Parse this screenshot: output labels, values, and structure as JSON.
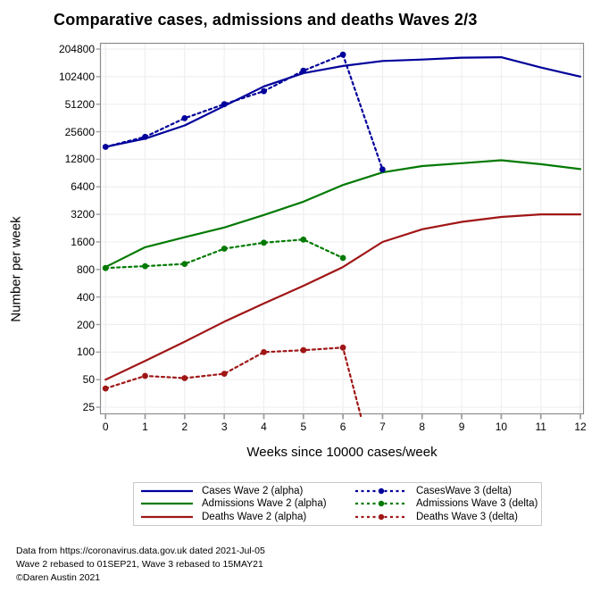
{
  "title": "Comparative cases, admissions and deaths Waves 2/3",
  "y_axis": {
    "label": "Number per week",
    "ticks": [
      204800,
      102400,
      51200,
      25600,
      12800,
      6400,
      3200,
      1600,
      800,
      400,
      200,
      100,
      50,
      25
    ]
  },
  "x_axis": {
    "label": "Weeks since 10000 cases/week",
    "ticks": [
      0,
      1,
      2,
      3,
      4,
      5,
      6,
      7,
      8,
      9,
      10,
      11,
      12
    ]
  },
  "chart_data": {
    "type": "line",
    "title": "Comparative cases, admissions and deaths Waves 2/3",
    "xlabel": "Weeks since 10000 cases/week",
    "ylabel": "Number per week",
    "y_scale": "log2",
    "ylim": [
      25,
      204800
    ],
    "xlim": [
      0,
      12
    ],
    "grid": true,
    "legend_position": "bottom",
    "series": [
      {
        "name": "Cases Wave 2 (alpha)",
        "color": "#00009b",
        "style": "solid",
        "markers": false,
        "x": [
          0,
          1,
          2,
          3,
          4,
          5,
          6,
          7,
          8,
          9,
          10,
          11,
          12
        ],
        "values": [
          17500,
          21500,
          30000,
          49000,
          80000,
          112000,
          134000,
          152000,
          157500,
          165000,
          167000,
          129000,
          102400
        ]
      },
      {
        "name": "Admissions Wave 2 (alpha)",
        "color": "#027a02",
        "style": "solid",
        "markers": false,
        "x": [
          0,
          1,
          2,
          3,
          4,
          5,
          6,
          7,
          8,
          9,
          10,
          11,
          12
        ],
        "values": [
          850,
          1400,
          1800,
          2300,
          3150,
          4400,
          6700,
          9200,
          10800,
          11600,
          12500,
          11300,
          10000
        ]
      },
      {
        "name": "Deaths Wave 2 (alpha)",
        "color": "#a01616",
        "style": "solid",
        "markers": false,
        "x": [
          0,
          1,
          2,
          3,
          4,
          5,
          6,
          7,
          8,
          9,
          10,
          11,
          12
        ],
        "values": [
          50,
          80,
          130,
          215,
          340,
          530,
          850,
          1600,
          2200,
          2650,
          3000,
          3200,
          3200
        ]
      },
      {
        "name": "CasesWave 3 (delta)",
        "color": "#00009b",
        "style": "dashed",
        "markers": true,
        "x": [
          0,
          1,
          2,
          3,
          4,
          5,
          6,
          7
        ],
        "values": [
          17500,
          22500,
          36000,
          51200,
          71000,
          119000,
          178000,
          9900
        ]
      },
      {
        "name": "Admissions Wave 3 (delta)",
        "color": "#027a02",
        "style": "dashed",
        "markers": true,
        "x": [
          0,
          1,
          2,
          3,
          4,
          5,
          6
        ],
        "values": [
          830,
          870,
          920,
          1350,
          1570,
          1700,
          1070
        ]
      },
      {
        "name": "Deaths Wave 3 (delta)",
        "color": "#a01616",
        "style": "dashed",
        "markers": true,
        "marker_count": 7,
        "x": [
          0,
          1,
          2,
          3,
          4,
          5,
          6,
          6.45
        ],
        "values": [
          40,
          55,
          52,
          58,
          100,
          105,
          112,
          20
        ]
      }
    ]
  },
  "legend": {
    "items": [
      {
        "label": "Cases Wave 2 (alpha)",
        "color": "#00009b",
        "dashed": false
      },
      {
        "label": "Admissions Wave 2 (alpha)",
        "color": "#027a02",
        "dashed": false
      },
      {
        "label": "Deaths Wave 2 (alpha)",
        "color": "#a01616",
        "dashed": false
      },
      {
        "label": "CasesWave 3 (delta)",
        "color": "#00009b",
        "dashed": true
      },
      {
        "label": "Admissions Wave 3 (delta)",
        "color": "#027a02",
        "dashed": true
      },
      {
        "label": "Deaths Wave 3 (delta)",
        "color": "#a01616",
        "dashed": true
      }
    ]
  },
  "footer": {
    "line1": "Data from https://coronavirus.data.gov.uk dated 2021-Jul-05",
    "line2": "Wave 2 rebased to 01SEP21, Wave 3 rebased to 15MAY21",
    "line3": "©Daren Austin 2021"
  },
  "colors": {
    "cases": "#00009b",
    "admissions": "#027a02",
    "deaths": "#a01616",
    "grid": "#efefef",
    "frame": "#8c8c8c"
  }
}
